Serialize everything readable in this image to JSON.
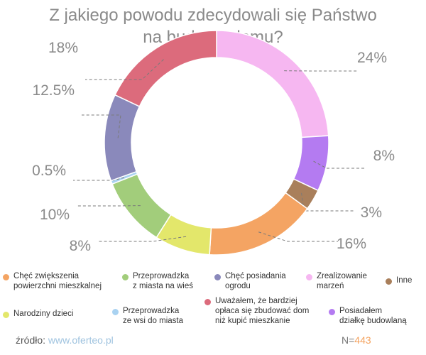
{
  "title_line1": "Z jakiego powodu zdecydowali się Państwo",
  "title_line2": "na budowę domu?",
  "chart_data": {
    "type": "pie",
    "title": "Z jakiego powodu zdecydowali się Państwo na budowę domu?",
    "donut": true,
    "slices": [
      {
        "label": "Zrealizowanie\nmarzeń",
        "value": 24,
        "display": "24%",
        "color": "#f6b7f1"
      },
      {
        "label": "Posiadałem\ndziałkę budowlaną",
        "value": 8,
        "display": "8%",
        "color": "#b47bf1"
      },
      {
        "label": "Inne",
        "value": 3,
        "display": "3%",
        "color": "#a97f5b"
      },
      {
        "label": "Chęć zwiększenia\npowierzchni mieszkalnej",
        "value": 16,
        "display": "16%",
        "color": "#f4a463"
      },
      {
        "label": "Narodziny dzieci",
        "value": 8,
        "display": "8%",
        "color": "#e3e76b"
      },
      {
        "label": "Przeprowadzka\nz miasta na wieś",
        "value": 10,
        "display": "10%",
        "color": "#a2cd7b"
      },
      {
        "label": "Przeprowadzka\nze wsi do miasta",
        "value": 0.5,
        "display": "0.5%",
        "color": "#a9d2f1"
      },
      {
        "label": "Chęć posiadania\nogrodu",
        "value": 12.5,
        "display": "12.5%",
        "color": "#8a89bb"
      },
      {
        "label": "Uważałem, że bardziej\nopłaca się zbudować dom\nniż kupić mieszkanie",
        "value": 18,
        "display": "18%",
        "color": "#dc6b7c"
      }
    ],
    "legend_placement": "bottom"
  },
  "legend_order": [
    3,
    5,
    7,
    0,
    2,
    4,
    6,
    8,
    1
  ],
  "footer": {
    "source_label": "źródło: ",
    "source_link": "www.oferteo.pl",
    "n_label": "N=",
    "n_value": "443"
  }
}
